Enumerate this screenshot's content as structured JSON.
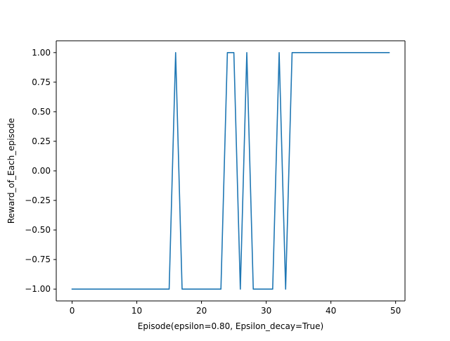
{
  "chart_data": {
    "type": "line",
    "title": "",
    "xlabel": "Episode(epsilon=0.80, Epsilon_decay=True)",
    "ylabel": "Reward_of_Each_episode",
    "xlim": [
      -2.45,
      51.45
    ],
    "ylim": [
      -1.1,
      1.1
    ],
    "xticks": [
      0,
      10,
      20,
      30,
      40,
      50
    ],
    "xtick_labels": [
      "0",
      "10",
      "20",
      "30",
      "40",
      "50"
    ],
    "yticks": [
      -1.0,
      -0.75,
      -0.5,
      -0.25,
      0.0,
      0.25,
      0.5,
      0.75,
      1.0
    ],
    "ytick_labels": [
      "−1.00",
      "−0.75",
      "−0.50",
      "−0.25",
      "0.00",
      "0.25",
      "0.50",
      "0.75",
      "1.00"
    ],
    "grid": false,
    "colors": {
      "line": "#1f77b4",
      "axes": "#000000"
    },
    "series": [
      {
        "name": "reward",
        "x": [
          0,
          1,
          2,
          3,
          4,
          5,
          6,
          7,
          8,
          9,
          10,
          11,
          12,
          13,
          14,
          15,
          16,
          17,
          18,
          19,
          20,
          21,
          22,
          23,
          24,
          25,
          26,
          27,
          28,
          29,
          30,
          31,
          32,
          33,
          34,
          35,
          36,
          37,
          38,
          39,
          40,
          41,
          42,
          43,
          44,
          45,
          46,
          47,
          48,
          49
        ],
        "values": [
          -1,
          -1,
          -1,
          -1,
          -1,
          -1,
          -1,
          -1,
          -1,
          -1,
          -1,
          -1,
          -1,
          -1,
          -1,
          -1,
          1,
          -1,
          -1,
          -1,
          -1,
          -1,
          -1,
          -1,
          1,
          1,
          -1,
          1,
          -1,
          -1,
          -1,
          -1,
          1,
          -1,
          1,
          1,
          1,
          1,
          1,
          1,
          1,
          1,
          1,
          1,
          1,
          1,
          1,
          1,
          1,
          1
        ]
      }
    ]
  }
}
